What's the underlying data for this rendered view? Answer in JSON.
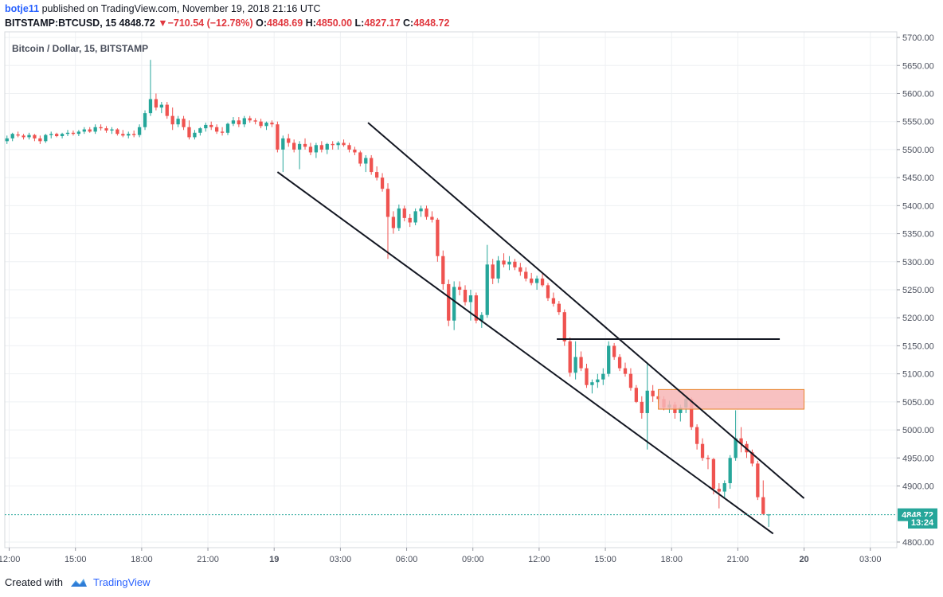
{
  "header": {
    "user": "botje11",
    "published": "published on TradingView.com, November 19, 2018 21:16 UTC",
    "symbol": "BITSTAMP:BTCUSD, 15",
    "last": "4848.72",
    "change": "−710.54 (−12.78%)",
    "o_label": "O:",
    "o_value": "4848.69",
    "h_label": "H:",
    "h_value": "4850.00",
    "l_label": "L:",
    "l_value": "4827.17",
    "c_label": "C:",
    "c_value": "4848.72"
  },
  "footer": {
    "created_with": "Created with",
    "brand": "TradingView"
  },
  "colors": {
    "up": "#26a69a",
    "down": "#ef5350",
    "zone": "#f7b6b6",
    "zone_border": "#e8832a",
    "last_badge": "#26a69a"
  },
  "chart_data": {
    "type": "candlestick",
    "title": "Bitcoin / Dollar, 15, BITSTAMP",
    "y_ticks": [
      "5700.00",
      "5650.00",
      "5600.00",
      "5550.00",
      "5500.00",
      "5450.00",
      "5400.00",
      "5350.00",
      "5300.00",
      "5250.00",
      "5200.00",
      "5150.00",
      "5100.00",
      "5050.00",
      "5000.00",
      "4950.00",
      "4900.00",
      "4800.00"
    ],
    "ylim": [
      4790,
      5710
    ],
    "x_ticks": [
      {
        "h": 12,
        "label": "12:00",
        "bold": false
      },
      {
        "h": 15,
        "label": "15:00",
        "bold": false
      },
      {
        "h": 18,
        "label": "18:00",
        "bold": false
      },
      {
        "h": 21,
        "label": "21:00",
        "bold": false
      },
      {
        "h": 24,
        "label": "19",
        "bold": true
      },
      {
        "h": 27,
        "label": "03:00",
        "bold": false
      },
      {
        "h": 30,
        "label": "06:00",
        "bold": false
      },
      {
        "h": 33,
        "label": "09:00",
        "bold": false
      },
      {
        "h": 36,
        "label": "12:00",
        "bold": false
      },
      {
        "h": 39,
        "label": "15:00",
        "bold": false
      },
      {
        "h": 42,
        "label": "18:00",
        "bold": false
      },
      {
        "h": 45,
        "label": "21:00",
        "bold": false
      },
      {
        "h": 48,
        "label": "20",
        "bold": true
      },
      {
        "h": 51,
        "label": "03:00",
        "bold": false
      }
    ],
    "xlim_hours": [
      11.8,
      52.2
    ],
    "last_price": "4848.72",
    "countdown": "13:24",
    "candles": [
      [
        11.9,
        5515,
        5525,
        5510,
        5520
      ],
      [
        12.15,
        5520,
        5530,
        5515,
        5528
      ],
      [
        12.4,
        5527,
        5532,
        5522,
        5525
      ],
      [
        12.65,
        5525,
        5528,
        5518,
        5522
      ],
      [
        12.9,
        5522,
        5530,
        5518,
        5526
      ],
      [
        13.15,
        5526,
        5528,
        5515,
        5520
      ],
      [
        13.4,
        5520,
        5525,
        5510,
        5515
      ],
      [
        13.65,
        5515,
        5528,
        5512,
        5526
      ],
      [
        13.9,
        5526,
        5532,
        5520,
        5528
      ],
      [
        14.15,
        5528,
        5530,
        5522,
        5524
      ],
      [
        14.4,
        5524,
        5530,
        5520,
        5528
      ],
      [
        14.65,
        5528,
        5535,
        5524,
        5530
      ],
      [
        14.9,
        5530,
        5534,
        5525,
        5528
      ],
      [
        15.15,
        5528,
        5535,
        5524,
        5532
      ],
      [
        15.4,
        5532,
        5540,
        5528,
        5536
      ],
      [
        15.65,
        5536,
        5540,
        5530,
        5532
      ],
      [
        15.9,
        5532,
        5545,
        5528,
        5540
      ],
      [
        16.15,
        5540,
        5545,
        5534,
        5538
      ],
      [
        16.4,
        5538,
        5542,
        5530,
        5534
      ],
      [
        16.65,
        5534,
        5540,
        5528,
        5536
      ],
      [
        16.9,
        5536,
        5538,
        5525,
        5528
      ],
      [
        17.15,
        5528,
        5535,
        5522,
        5525
      ],
      [
        17.4,
        5525,
        5532,
        5520,
        5528
      ],
      [
        17.65,
        5528,
        5534,
        5522,
        5526
      ],
      [
        17.9,
        5526,
        5545,
        5522,
        5540
      ],
      [
        18.15,
        5540,
        5570,
        5535,
        5565
      ],
      [
        18.4,
        5565,
        5660,
        5560,
        5590
      ],
      [
        18.65,
        5590,
        5600,
        5570,
        5575
      ],
      [
        18.9,
        5575,
        5585,
        5565,
        5580
      ],
      [
        19.15,
        5580,
        5585,
        5555,
        5560
      ],
      [
        19.4,
        5560,
        5575,
        5535,
        5545
      ],
      [
        19.65,
        5545,
        5560,
        5540,
        5555
      ],
      [
        19.9,
        5555,
        5560,
        5535,
        5540
      ],
      [
        20.15,
        5540,
        5552,
        5518,
        5522
      ],
      [
        20.4,
        5522,
        5535,
        5518,
        5530
      ],
      [
        20.65,
        5530,
        5540,
        5525,
        5538
      ],
      [
        20.9,
        5538,
        5548,
        5532,
        5544
      ],
      [
        21.15,
        5544,
        5550,
        5535,
        5540
      ],
      [
        21.4,
        5540,
        5545,
        5528,
        5532
      ],
      [
        21.65,
        5532,
        5540,
        5525,
        5530
      ],
      [
        21.9,
        5530,
        5548,
        5526,
        5546
      ],
      [
        22.15,
        5546,
        5558,
        5542,
        5552
      ],
      [
        22.4,
        5552,
        5558,
        5540,
        5545
      ],
      [
        22.65,
        5545,
        5560,
        5540,
        5556
      ],
      [
        22.9,
        5556,
        5560,
        5548,
        5552
      ],
      [
        23.15,
        5552,
        5556,
        5545,
        5550
      ],
      [
        23.4,
        5550,
        5555,
        5538,
        5542
      ],
      [
        23.65,
        5542,
        5550,
        5535,
        5548
      ],
      [
        23.9,
        5548,
        5552,
        5540,
        5545
      ],
      [
        24.15,
        5545,
        5550,
        5495,
        5500
      ],
      [
        24.4,
        5500,
        5525,
        5460,
        5520
      ],
      [
        24.65,
        5520,
        5528,
        5505,
        5512
      ],
      [
        24.9,
        5512,
        5518,
        5495,
        5500
      ],
      [
        25.15,
        5500,
        5515,
        5465,
        5510
      ],
      [
        25.4,
        5510,
        5520,
        5500,
        5505
      ],
      [
        25.65,
        5505,
        5512,
        5490,
        5495
      ],
      [
        25.9,
        5495,
        5512,
        5485,
        5508
      ],
      [
        26.15,
        5508,
        5515,
        5495,
        5500
      ],
      [
        26.4,
        5500,
        5512,
        5492,
        5510
      ],
      [
        26.65,
        5510,
        5515,
        5500,
        5508
      ],
      [
        26.9,
        5508,
        5515,
        5500,
        5512
      ],
      [
        27.15,
        5512,
        5518,
        5505,
        5508
      ],
      [
        27.4,
        5508,
        5512,
        5495,
        5500
      ],
      [
        27.65,
        5500,
        5505,
        5490,
        5495
      ],
      [
        27.9,
        5495,
        5498,
        5470,
        5475
      ],
      [
        28.15,
        5475,
        5490,
        5460,
        5485
      ],
      [
        28.4,
        5485,
        5490,
        5455,
        5460
      ],
      [
        28.65,
        5460,
        5470,
        5445,
        5450
      ],
      [
        28.9,
        5450,
        5458,
        5425,
        5430
      ],
      [
        29.15,
        5430,
        5440,
        5305,
        5380
      ],
      [
        29.4,
        5380,
        5390,
        5350,
        5360
      ],
      [
        29.65,
        5360,
        5402,
        5355,
        5395
      ],
      [
        29.9,
        5395,
        5400,
        5372,
        5378
      ],
      [
        30.15,
        5378,
        5385,
        5362,
        5370
      ],
      [
        30.4,
        5370,
        5395,
        5365,
        5390
      ],
      [
        30.65,
        5390,
        5400,
        5380,
        5395
      ],
      [
        30.9,
        5395,
        5400,
        5375,
        5380
      ],
      [
        31.15,
        5380,
        5390,
        5370,
        5375
      ],
      [
        31.4,
        5375,
        5378,
        5300,
        5310
      ],
      [
        31.65,
        5310,
        5320,
        5250,
        5260
      ],
      [
        31.9,
        5260,
        5268,
        5185,
        5195
      ],
      [
        32.15,
        5195,
        5265,
        5178,
        5255
      ],
      [
        32.4,
        5255,
        5265,
        5240,
        5250
      ],
      [
        32.65,
        5250,
        5258,
        5222,
        5228
      ],
      [
        32.9,
        5228,
        5250,
        5195,
        5240
      ],
      [
        33.15,
        5240,
        5245,
        5190,
        5195
      ],
      [
        33.4,
        5195,
        5210,
        5182,
        5205
      ],
      [
        33.65,
        5205,
        5330,
        5200,
        5295
      ],
      [
        33.9,
        5295,
        5305,
        5260,
        5270
      ],
      [
        34.15,
        5270,
        5310,
        5262,
        5302
      ],
      [
        34.4,
        5302,
        5315,
        5290,
        5295
      ],
      [
        34.65,
        5295,
        5310,
        5285,
        5300
      ],
      [
        34.9,
        5300,
        5305,
        5285,
        5290
      ],
      [
        35.15,
        5290,
        5298,
        5275,
        5282
      ],
      [
        35.4,
        5282,
        5290,
        5265,
        5270
      ],
      [
        35.65,
        5270,
        5280,
        5258,
        5262
      ],
      [
        35.9,
        5262,
        5275,
        5250,
        5270
      ],
      [
        36.15,
        5270,
        5278,
        5255,
        5258
      ],
      [
        36.4,
        5258,
        5262,
        5230,
        5235
      ],
      [
        36.65,
        5235,
        5245,
        5220,
        5225
      ],
      [
        36.9,
        5225,
        5230,
        5205,
        5210
      ],
      [
        37.15,
        5210,
        5215,
        5150,
        5158
      ],
      [
        37.4,
        5158,
        5165,
        5095,
        5102
      ],
      [
        37.65,
        5102,
        5158,
        5090,
        5130
      ],
      [
        37.9,
        5130,
        5140,
        5105,
        5110
      ],
      [
        38.15,
        5110,
        5118,
        5075,
        5080
      ],
      [
        38.4,
        5080,
        5090,
        5065,
        5085
      ],
      [
        38.65,
        5085,
        5100,
        5075,
        5090
      ],
      [
        38.9,
        5090,
        5110,
        5080,
        5100
      ],
      [
        39.15,
        5100,
        5158,
        5095,
        5150
      ],
      [
        39.4,
        5150,
        5155,
        5125,
        5130
      ],
      [
        39.65,
        5130,
        5135,
        5105,
        5110
      ],
      [
        39.9,
        5110,
        5120,
        5095,
        5100
      ],
      [
        40.15,
        5100,
        5110,
        5070,
        5075
      ],
      [
        40.4,
        5075,
        5080,
        5048,
        5050
      ],
      [
        40.65,
        5050,
        5060,
        5020,
        5030
      ],
      [
        40.9,
        5030,
        5120,
        4965,
        5070
      ],
      [
        41.15,
        5070,
        5080,
        5050,
        5060
      ],
      [
        41.4,
        5060,
        5072,
        5048,
        5055
      ],
      [
        41.65,
        5055,
        5060,
        5035,
        5040
      ],
      [
        41.9,
        5040,
        5052,
        5030,
        5045
      ],
      [
        42.15,
        5045,
        5050,
        5020,
        5030
      ],
      [
        42.4,
        5030,
        5045,
        5015,
        5040
      ],
      [
        42.65,
        5040,
        5060,
        5030,
        5055
      ],
      [
        42.9,
        5055,
        5058,
        5000,
        5005
      ],
      [
        43.15,
        5005,
        5010,
        4965,
        4975
      ],
      [
        43.4,
        4975,
        4985,
        4945,
        4950
      ],
      [
        43.65,
        4950,
        4955,
        4930,
        4948
      ],
      [
        43.9,
        4948,
        4950,
        4885,
        4895
      ],
      [
        44.15,
        4895,
        4905,
        4860,
        4890
      ],
      [
        44.4,
        4890,
        4910,
        4880,
        4905
      ],
      [
        44.65,
        4905,
        4955,
        4895,
        4950
      ],
      [
        44.9,
        4950,
        5035,
        4945,
        4985
      ],
      [
        45.15,
        4985,
        5005,
        4960,
        4975
      ],
      [
        45.4,
        4975,
        4980,
        4950,
        4960
      ],
      [
        45.65,
        4960,
        4965,
        4935,
        4940
      ],
      [
        45.9,
        4940,
        4945,
        4875,
        4880
      ],
      [
        46.15,
        4880,
        4910,
        4848,
        4850
      ],
      [
        46.4,
        4848,
        4850,
        4827,
        4849
      ]
    ]
  }
}
